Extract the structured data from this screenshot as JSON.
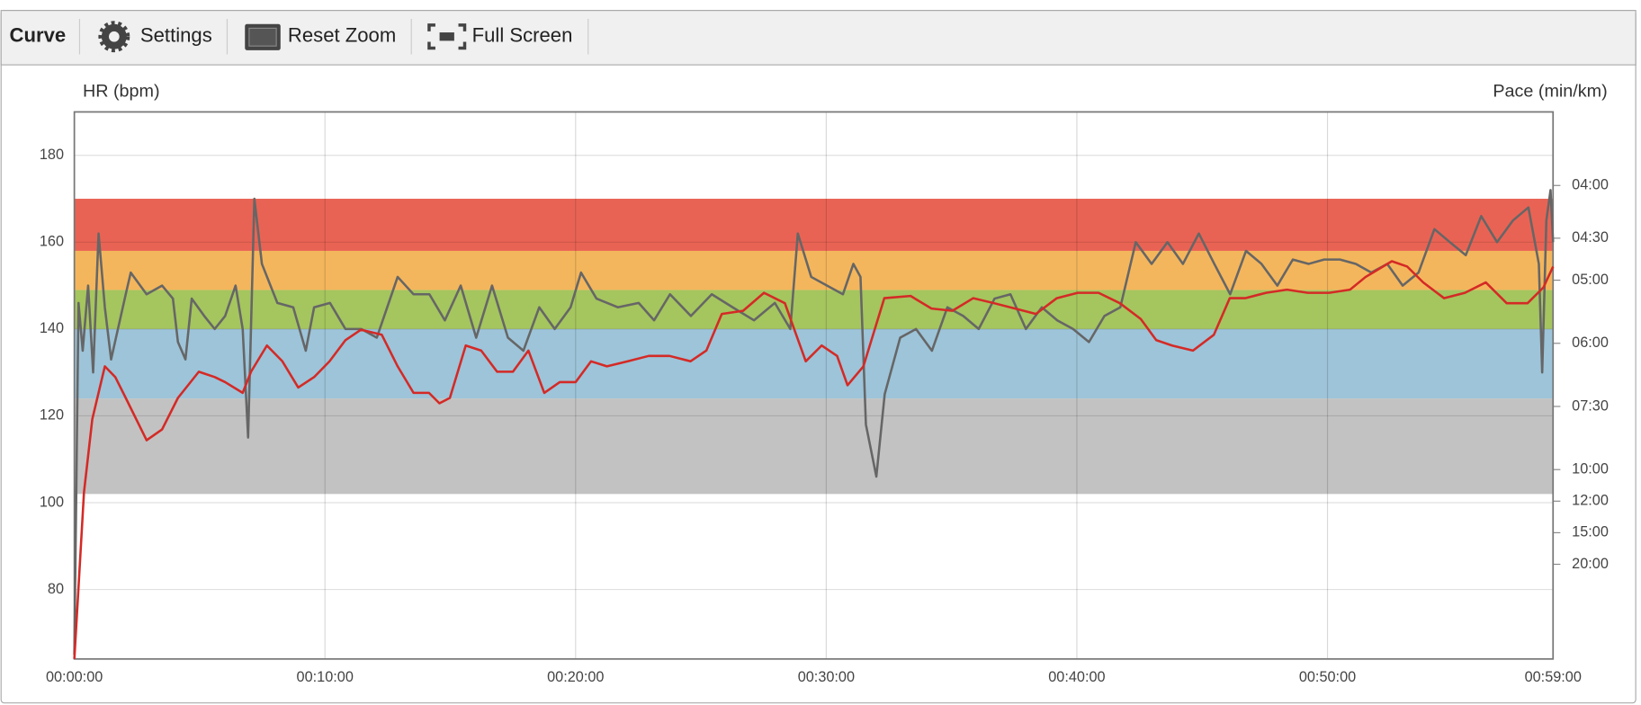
{
  "toolbar": {
    "title": "Curve",
    "buttons": [
      "Settings",
      "Reset Zoom",
      "Full Screen"
    ]
  },
  "chart_data": {
    "type": "line",
    "y_label": "HR (bpm)",
    "y2_label": "Pace (min/km)",
    "xlim": [
      0,
      3540
    ],
    "xticks": [
      {
        "value": 0,
        "label": "00:00:00"
      },
      {
        "value": 600,
        "label": "00:10:00"
      },
      {
        "value": 1200,
        "label": "00:20:00"
      },
      {
        "value": 1800,
        "label": "00:30:00"
      },
      {
        "value": 2400,
        "label": "00:40:00"
      },
      {
        "value": 3000,
        "label": "00:50:00"
      },
      {
        "value": 3540,
        "label": "00:59:00"
      }
    ],
    "ylim": [
      64,
      190
    ],
    "yticks": [
      80,
      100,
      120,
      140,
      160,
      180
    ],
    "y2lim": [
      0,
      17.33
    ],
    "y2ticks": [
      {
        "value": 15,
        "label": "04:00"
      },
      {
        "value": 13.33,
        "label": "04:30"
      },
      {
        "value": 12,
        "label": "05:00"
      },
      {
        "value": 10,
        "label": "06:00"
      },
      {
        "value": 8,
        "label": "07:30"
      },
      {
        "value": 6,
        "label": "10:00"
      },
      {
        "value": 5,
        "label": "12:00"
      },
      {
        "value": 4,
        "label": "15:00"
      },
      {
        "value": 3,
        "label": "20:00"
      }
    ],
    "grid": true,
    "zones": [
      {
        "from": 102,
        "to": 124,
        "color": "#c2c2c2"
      },
      {
        "from": 124,
        "to": 140,
        "color": "#9dc4d9"
      },
      {
        "from": 140,
        "to": 149,
        "color": "#a5c55e"
      },
      {
        "from": 149,
        "to": 158,
        "color": "#f4b65c"
      },
      {
        "from": 158,
        "to": 170,
        "color": "#e96354"
      }
    ],
    "series": [
      {
        "name": "HR",
        "color": "#666666",
        "x": [
          0,
          10,
          20,
          33,
          45,
          58,
          73,
          88,
          123,
          135,
          173,
          210,
          236,
          248,
          266,
          281,
          311,
          336,
          361,
          386,
          403,
          416,
          431,
          449,
          486,
          524,
          554,
          574,
          612,
          649,
          687,
          724,
          774,
          812,
          850,
          887,
          925,
          962,
          1000,
          1038,
          1075,
          1113,
          1150,
          1188,
          1213,
          1250,
          1301,
          1351,
          1388,
          1426,
          1476,
          1526,
          1576,
          1627,
          1677,
          1714,
          1732,
          1764,
          1802,
          1840,
          1865,
          1882,
          1895,
          1920,
          1940,
          1977,
          2015,
          2053,
          2090,
          2128,
          2165,
          2203,
          2241,
          2278,
          2316,
          2353,
          2391,
          2429,
          2466,
          2504,
          2541,
          2579,
          2617,
          2654,
          2692,
          2729,
          2767,
          2805,
          2842,
          2880,
          2917,
          2955,
          2992,
          3030,
          3068,
          3105,
          3143,
          3180,
          3218,
          3256,
          3293,
          3331,
          3368,
          3406,
          3444,
          3481,
          3506,
          3514,
          3524,
          3534,
          3540
        ],
        "values": [
          65,
          146,
          135,
          150,
          130,
          162,
          145,
          133,
          148,
          153,
          148,
          150,
          147,
          137,
          133,
          147,
          143,
          140,
          143,
          150,
          140,
          115,
          170,
          155,
          146,
          145,
          135,
          145,
          146,
          140,
          140,
          138,
          152,
          148,
          148,
          142,
          150,
          138,
          150,
          138,
          135,
          145,
          140,
          145,
          153,
          147,
          145,
          146,
          142,
          148,
          143,
          148,
          145,
          142,
          146,
          140,
          162,
          152,
          150,
          148,
          155,
          152,
          118,
          106,
          125,
          138,
          140,
          135,
          145,
          143,
          140,
          147,
          148,
          140,
          145,
          142,
          140,
          137,
          143,
          145,
          160,
          155,
          160,
          155,
          162,
          155,
          148,
          158,
          155,
          150,
          156,
          155,
          156,
          156,
          155,
          153,
          155,
          150,
          153,
          163,
          160,
          157,
          166,
          160,
          165,
          168,
          155,
          130,
          165,
          172,
          160
        ]
      },
      {
        "name": "Pace",
        "color": "#d42a26",
        "axis": "y2",
        "x": [
          0,
          10,
          23,
          43,
          73,
          98,
          123,
          173,
          210,
          248,
          298,
          336,
          361,
          403,
          423,
          461,
          498,
          536,
          574,
          611,
          649,
          686,
          736,
          774,
          812,
          849,
          874,
          899,
          937,
          974,
          1012,
          1050,
          1087,
          1125,
          1162,
          1200,
          1237,
          1275,
          1325,
          1375,
          1425,
          1475,
          1513,
          1550,
          1601,
          1651,
          1701,
          1751,
          1789,
          1826,
          1851,
          1889,
          1939,
          2002,
          2052,
          2102,
          2152,
          2202,
          2252,
          2302,
          2352,
          2402,
          2452,
          2503,
          2553,
          2590,
          2628,
          2678,
          2728,
          2766,
          2803,
          2853,
          2903,
          2953,
          3004,
          3054,
          3091,
          3154,
          3191,
          3229,
          3279,
          3329,
          3379,
          3429,
          3479,
          3517,
          3540
        ],
        "values": [
          0,
          2.27,
          5.27,
          7.6,
          9.27,
          8.93,
          8.27,
          6.93,
          7.27,
          8.27,
          9.1,
          8.93,
          8.77,
          8.43,
          9.1,
          9.93,
          9.43,
          8.6,
          8.93,
          9.43,
          10.1,
          10.43,
          10.27,
          9.27,
          8.43,
          8.43,
          8.1,
          8.27,
          9.93,
          9.77,
          9.1,
          9.1,
          9.77,
          8.43,
          8.77,
          8.77,
          9.43,
          9.27,
          9.43,
          9.6,
          9.6,
          9.43,
          9.77,
          10.93,
          11.03,
          11.6,
          11.27,
          9.43,
          9.93,
          9.6,
          8.67,
          9.27,
          11.43,
          11.5,
          11.1,
          11.03,
          11.43,
          11.27,
          11.1,
          10.93,
          11.43,
          11.6,
          11.6,
          11.27,
          10.77,
          10.1,
          9.93,
          9.77,
          10.27,
          11.43,
          11.43,
          11.6,
          11.7,
          11.6,
          11.6,
          11.7,
          12.1,
          12.6,
          12.43,
          11.93,
          11.43,
          11.6,
          11.93,
          11.27,
          11.27,
          11.77,
          12.43
        ]
      }
    ]
  }
}
